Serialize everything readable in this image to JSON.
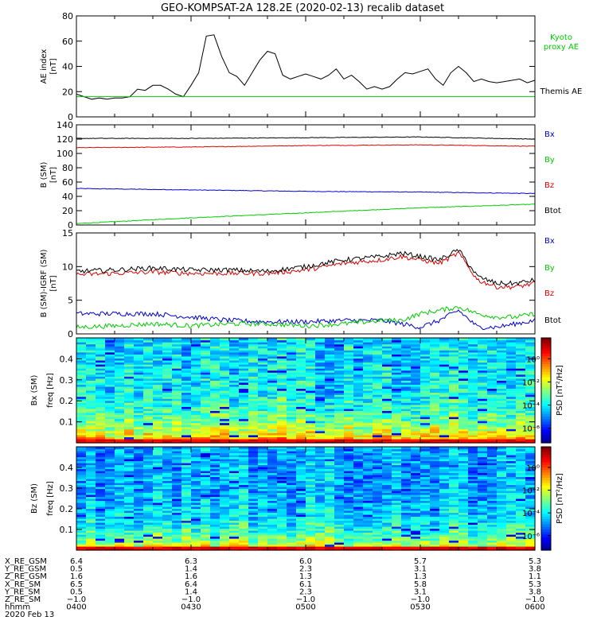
{
  "title": "GEO-KOMPSAT-2A 128.2E (2020-02-13) recalib dataset",
  "colors": {
    "black": "#000000",
    "red": "#dd0000",
    "blue": "#0000cc",
    "green": "#00cc00"
  },
  "chart_data": [
    {
      "type": "line",
      "ylabel": [
        "AE index",
        "[nT]"
      ],
      "ylim": [
        0,
        80
      ],
      "yticks": [
        0,
        20,
        40,
        60,
        80
      ],
      "xlim": [
        0,
        120
      ],
      "legend": [
        {
          "text": "Kyoto",
          "color": "#00cc00"
        },
        {
          "text": "proxy AE",
          "color": "#00cc00"
        },
        {
          "text": "Themis AE",
          "color": "#000000"
        }
      ],
      "series": [
        {
          "name": "Themis AE",
          "color": "#000000",
          "x": [
            0,
            2,
            4,
            6,
            8,
            10,
            12,
            14,
            16,
            18,
            20,
            22,
            24,
            26,
            28,
            30,
            32,
            34,
            36,
            38,
            40,
            42,
            44,
            46,
            48,
            50,
            52,
            54,
            56,
            58,
            60,
            62,
            64,
            66,
            68,
            70,
            72,
            74,
            76,
            78,
            80,
            82,
            84,
            86,
            88,
            90,
            92,
            94,
            96,
            98,
            100,
            102,
            104,
            106,
            108,
            110,
            112,
            114,
            116,
            118,
            120
          ],
          "y": [
            18,
            16,
            14,
            15,
            14,
            15,
            15,
            16,
            22,
            21,
            25,
            25,
            22,
            18,
            16,
            25,
            35,
            64,
            65,
            48,
            35,
            32,
            25,
            35,
            45,
            52,
            50,
            33,
            30,
            32,
            34,
            32,
            30,
            33,
            38,
            30,
            33,
            28,
            22,
            24,
            22,
            24,
            30,
            35,
            34,
            36,
            38,
            30,
            25,
            35,
            40,
            35,
            28,
            30,
            28,
            27,
            28,
            29,
            30,
            27,
            29
          ]
        },
        {
          "name": "Kyoto proxy AE",
          "color": "#00cc00",
          "x": [
            0,
            120
          ],
          "y": [
            16,
            16
          ]
        }
      ]
    },
    {
      "type": "line",
      "ylabel": [
        "B (SM)",
        "[nT]"
      ],
      "ylim": [
        0,
        140
      ],
      "yticks": [
        0,
        20,
        40,
        60,
        80,
        100,
        120,
        140
      ],
      "xlim": [
        0,
        120
      ],
      "legend": [
        {
          "text": "Bx",
          "color": "#0000cc"
        },
        {
          "text": "By",
          "color": "#00cc00"
        },
        {
          "text": "Bz",
          "color": "#dd0000"
        },
        {
          "text": "Btot",
          "color": "#000000"
        }
      ],
      "series": [
        {
          "name": "Bx",
          "color": "#0000cc",
          "x": [
            0,
            30,
            60,
            90,
            120
          ],
          "y": [
            51,
            49,
            47,
            46,
            44
          ]
        },
        {
          "name": "By",
          "color": "#00cc00",
          "x": [
            0,
            30,
            60,
            90,
            120
          ],
          "y": [
            2,
            10,
            17,
            24,
            29
          ]
        },
        {
          "name": "Bz",
          "color": "#dd0000",
          "x": [
            0,
            30,
            60,
            90,
            120
          ],
          "y": [
            108,
            109,
            111,
            112,
            110
          ]
        },
        {
          "name": "Btot",
          "color": "#000000",
          "x": [
            0,
            30,
            60,
            90,
            120
          ],
          "y": [
            121,
            121,
            122,
            123,
            120
          ]
        }
      ]
    },
    {
      "type": "line",
      "ylabel": [
        "B (SM)-IGRF (SM)",
        "[nT]"
      ],
      "ylim": [
        0,
        15
      ],
      "yticks": [
        0,
        5,
        10,
        15
      ],
      "xlim": [
        0,
        120
      ],
      "legend": [
        {
          "text": "Bx",
          "color": "#0000cc"
        },
        {
          "text": "By",
          "color": "#00cc00"
        },
        {
          "text": "Bz",
          "color": "#dd0000"
        },
        {
          "text": "Btot",
          "color": "#000000"
        }
      ],
      "series": [
        {
          "name": "Bx",
          "color": "#0000cc",
          "x": [
            0,
            10,
            20,
            30,
            40,
            50,
            60,
            70,
            80,
            85,
            90,
            95,
            100,
            105,
            110,
            115,
            120
          ],
          "y": [
            3,
            3,
            3,
            2.5,
            2,
            1.8,
            1.8,
            2,
            2,
            1.5,
            1,
            2,
            3.5,
            1,
            1,
            1.5,
            2
          ]
        },
        {
          "name": "By",
          "color": "#00cc00",
          "x": [
            0,
            10,
            20,
            30,
            40,
            50,
            60,
            70,
            80,
            85,
            90,
            95,
            100,
            105,
            110,
            115,
            120
          ],
          "y": [
            1,
            1.2,
            1.5,
            1.2,
            1.5,
            1.5,
            1.2,
            1.5,
            2,
            2,
            3,
            3.5,
            4,
            3,
            2.5,
            2.5,
            3
          ]
        },
        {
          "name": "Bz",
          "color": "#dd0000",
          "x": [
            0,
            10,
            20,
            30,
            40,
            50,
            60,
            70,
            80,
            85,
            90,
            95,
            100,
            105,
            110,
            115,
            120
          ],
          "y": [
            8.8,
            9,
            9.2,
            9,
            9,
            9,
            9.5,
            10.5,
            11,
            11.5,
            11,
            10.5,
            12,
            8,
            7,
            7,
            7.5
          ]
        },
        {
          "name": "Btot",
          "color": "#000000",
          "x": [
            0,
            10,
            20,
            30,
            40,
            50,
            60,
            70,
            80,
            85,
            90,
            95,
            100,
            105,
            110,
            115,
            120
          ],
          "y": [
            9.3,
            9.5,
            9.8,
            9.5,
            9.5,
            9.3,
            10,
            11,
            11.5,
            12,
            11.5,
            11,
            12.5,
            8.5,
            7.5,
            7.5,
            8
          ]
        }
      ]
    },
    {
      "type": "heatmap",
      "ylabel": [
        "Bx (SM)",
        "freq [Hz]"
      ],
      "ylim": [
        0,
        0.5
      ],
      "yticks": [
        0.1,
        0.2,
        0.3,
        0.4
      ],
      "colorbar": {
        "label": "PSD [nT²/Hz]",
        "ticks": [
          "10⁰",
          "10⁻²",
          "10⁻⁴",
          "10⁻⁶"
        ]
      }
    },
    {
      "type": "heatmap",
      "ylabel": [
        "Bz (SM)",
        "freq [Hz]"
      ],
      "ylim": [
        0,
        0.5
      ],
      "yticks": [
        0.1,
        0.2,
        0.3,
        0.4
      ],
      "colorbar": {
        "label": "PSD [nT²/Hz]",
        "ticks": [
          "10⁰",
          "10⁻²",
          "10⁻⁴",
          "10⁻⁶"
        ]
      }
    }
  ],
  "ephemeris": {
    "row_labels": [
      "X_RE_GSM",
      "Y_RE_GSM",
      "Z_RE_GSM",
      "X_RE_SM",
      "Y_RE_SM",
      "Z_RE_SM",
      "hhmm"
    ],
    "columns": [
      [
        "6.4",
        "0.5",
        "1.6",
        "6.5",
        "0.5",
        "−1.0",
        "0400"
      ],
      [
        "6.3",
        "1.4",
        "1.6",
        "6.4",
        "1.4",
        "−1.0",
        "0430"
      ],
      [
        "6.0",
        "2.3",
        "1.3",
        "6.1",
        "2.3",
        "−1.0",
        "0500"
      ],
      [
        "5.7",
        "3.1",
        "1.3",
        "5.8",
        "3.1",
        "−1.0",
        "0530"
      ],
      [
        "5.3",
        "3.8",
        "1.1",
        "5.3",
        "3.8",
        "−1.0",
        "0600"
      ]
    ],
    "date": "2020 Feb 13"
  }
}
